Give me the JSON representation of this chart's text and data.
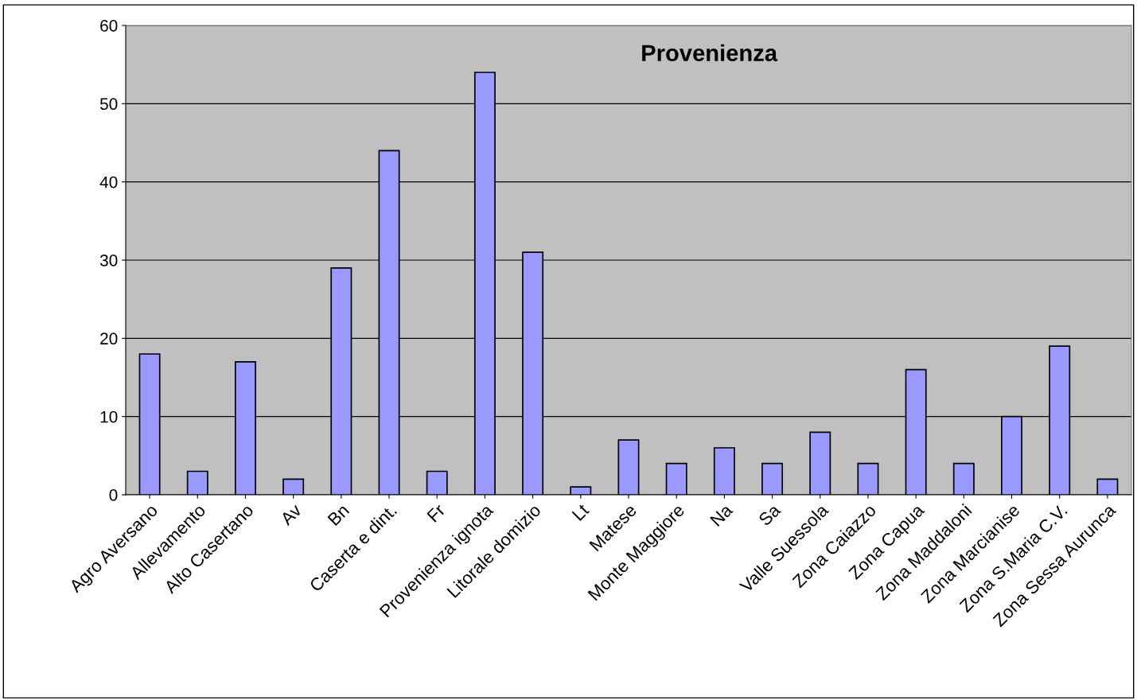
{
  "chart_data": {
    "type": "bar",
    "title": "Provenienza",
    "categories": [
      "Agro Aversano",
      "Allevamento",
      "Alto Casertano",
      "Av",
      "Bn",
      "Caserta e dint.",
      "Fr",
      "Provenienza ignota",
      "Litorale domizio",
      "Lt",
      "Matese",
      "Monte Maggiore",
      "Na",
      "Sa",
      "Valle Suessola",
      "Zona Caiazzo",
      "Zona Capua",
      "Zona Maddaloni",
      "Zona Marcianise",
      "Zona S.Maria C.V.",
      "Zona Sessa Aurunca"
    ],
    "values": [
      18,
      3,
      17,
      2,
      29,
      44,
      3,
      54,
      31,
      1,
      7,
      4,
      6,
      4,
      8,
      4,
      16,
      4,
      10,
      19,
      2
    ],
    "color": "#9999ff",
    "ylim": [
      0,
      60
    ],
    "yticks": [
      0,
      10,
      20,
      30,
      40,
      50,
      60
    ],
    "grid": "y",
    "legend": false
  }
}
